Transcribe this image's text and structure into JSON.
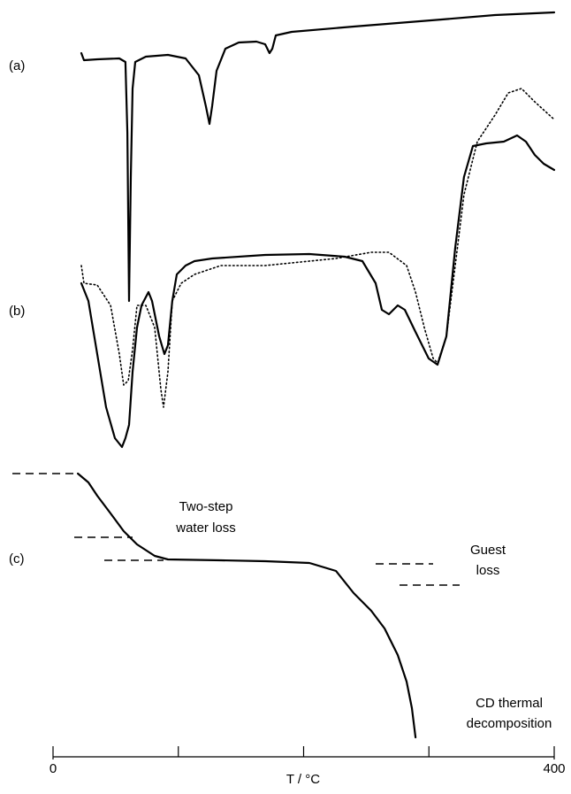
{
  "chart_data": {
    "type": "line",
    "xlabel": "T / °C",
    "xlim": [
      0,
      400
    ],
    "xticks": [
      0,
      400
    ],
    "minor_xticks": [
      100,
      200,
      300
    ],
    "ylim": [
      0,
      845
    ],
    "panel_labels": [
      "(a)",
      "(b)",
      "(c)"
    ],
    "annotations": [
      "Two-step",
      "water loss",
      "Guest",
      "loss",
      "CD thermal",
      "decomposition"
    ],
    "series": [
      {
        "color": "#000000",
        "style": "solid",
        "x": [
          22.6,
          24.7,
          35.3,
          52.9,
          57.8,
          59.3,
          60.7,
          62.1,
          63.5,
          65.6,
          74.1,
          91.7,
          105.8,
          116.4,
          122,
          124.9,
          127,
          130.5,
          137.6,
          148.2,
          162.3,
          169.3,
          172.8,
          175,
          177.8,
          190.5,
          239.9,
          310.4,
          352.7,
          400
        ],
        "values": [
          795,
          787,
          788,
          789,
          785,
          705,
          515,
          655,
          755,
          785,
          791,
          793,
          789,
          770,
          735,
          715,
          735,
          775,
          800,
          807,
          808,
          805,
          795,
          800,
          815,
          819,
          825,
          833,
          838,
          841
        ]
      },
      {
        "color": "#000000",
        "style": "solid",
        "x": [
          22.6,
          28.2,
          35.3,
          42.3,
          49.4,
          55,
          57.8,
          60.7,
          63.5,
          67,
          70.6,
          76.2,
          79,
          84.7,
          88.9,
          91.7,
          95.2,
          98.8,
          105.8,
          112.9,
          127,
          169.3,
          204.6,
          232.8,
          246.9,
          257.5,
          262.4,
          268.1,
          275.1,
          280.8,
          289.3,
          299.8,
          306.9,
          313.9,
          321,
          328,
          335.1,
          345.7,
          359.8,
          370.4,
          377.4,
          384.5,
          391.6,
          400
        ],
        "values": [
          535,
          515,
          455,
          395,
          360,
          350,
          360,
          375,
          435,
          485,
          510,
          525,
          515,
          475,
          455,
          465,
          515,
          545,
          555,
          560,
          563,
          567,
          568,
          565,
          560,
          535,
          505,
          500,
          510,
          505,
          480,
          450,
          443,
          475,
          575,
          655,
          690,
          693,
          695,
          702,
          695,
          680,
          670,
          663
        ]
      },
      {
        "color": "#000000",
        "style": "dotted",
        "x": [
          22.6,
          24.7,
          35.3,
          45.9,
          52.9,
          56.4,
          60,
          63.5,
          67,
          74.1,
          81.1,
          86.1,
          88.2,
          91.7,
          95.2,
          102.3,
          112.9,
          134,
          169.3,
          225.8,
          254,
          268.1,
          282.2,
          289.3,
          296.3,
          303.4,
          306.9,
          313.9,
          321,
          328,
          338.6,
          352.7,
          363.3,
          373.9,
          384.5,
          400
        ],
        "values": [
          555,
          535,
          533,
          510,
          455,
          420,
          425,
          460,
          510,
          510,
          485,
          415,
          395,
          435,
          515,
          535,
          545,
          555,
          555,
          563,
          570,
          570,
          555,
          525,
          485,
          450,
          445,
          475,
          555,
          635,
          695,
          725,
          750,
          755,
          740,
          720
        ]
      },
      {
        "color": "#000000",
        "style": "solid",
        "x": [
          19.8,
          28.2,
          35.3,
          45.9,
          56.4,
          67,
          81.1,
          91.7,
          134,
          169.3,
          204.6,
          225.8,
          239.9,
          254,
          264.6,
          275.1,
          282.2,
          286.4,
          289.3
        ],
        "values": [
          320,
          310,
          295,
          275,
          255,
          240,
          227,
          223,
          222,
          221,
          219,
          210,
          185,
          165,
          145,
          115,
          85,
          55,
          22
        ]
      }
    ]
  }
}
